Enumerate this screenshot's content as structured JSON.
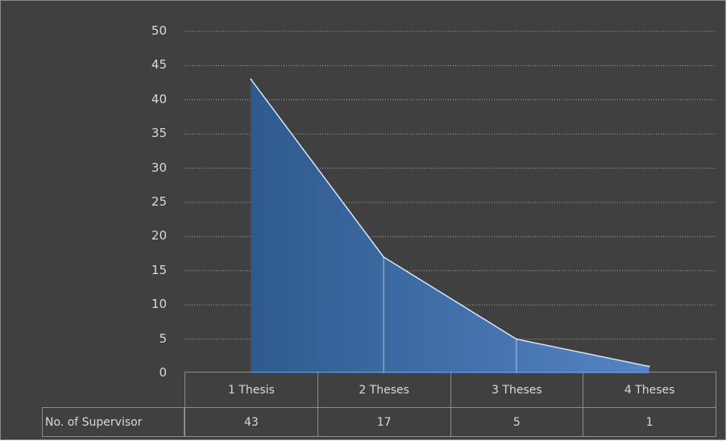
{
  "chart_data": {
    "type": "area",
    "categories": [
      "1 Thesis",
      "2 Theses",
      "3 Theses",
      "4 Theses"
    ],
    "series": [
      {
        "name": "No. of Supervisor",
        "values": [
          43,
          17,
          5,
          1
        ]
      }
    ],
    "y_ticks": [
      "0",
      "5",
      "10",
      "15",
      "20",
      "25",
      "30",
      "35",
      "40",
      "45",
      "50"
    ],
    "ylim": [
      0,
      50
    ],
    "grid": true,
    "legend": "data-table",
    "table_row_label": "No. of Supervisor",
    "table_values": [
      "43",
      "17",
      "5",
      "1"
    ],
    "colors": {
      "background": "#404040",
      "fill_start": "#2f5a8e",
      "fill_end": "#5584c4",
      "line": "#dce6f2",
      "grid": "#a6a6a6",
      "text": "#d9d9d9",
      "table_border": "#8c8c8c"
    }
  }
}
